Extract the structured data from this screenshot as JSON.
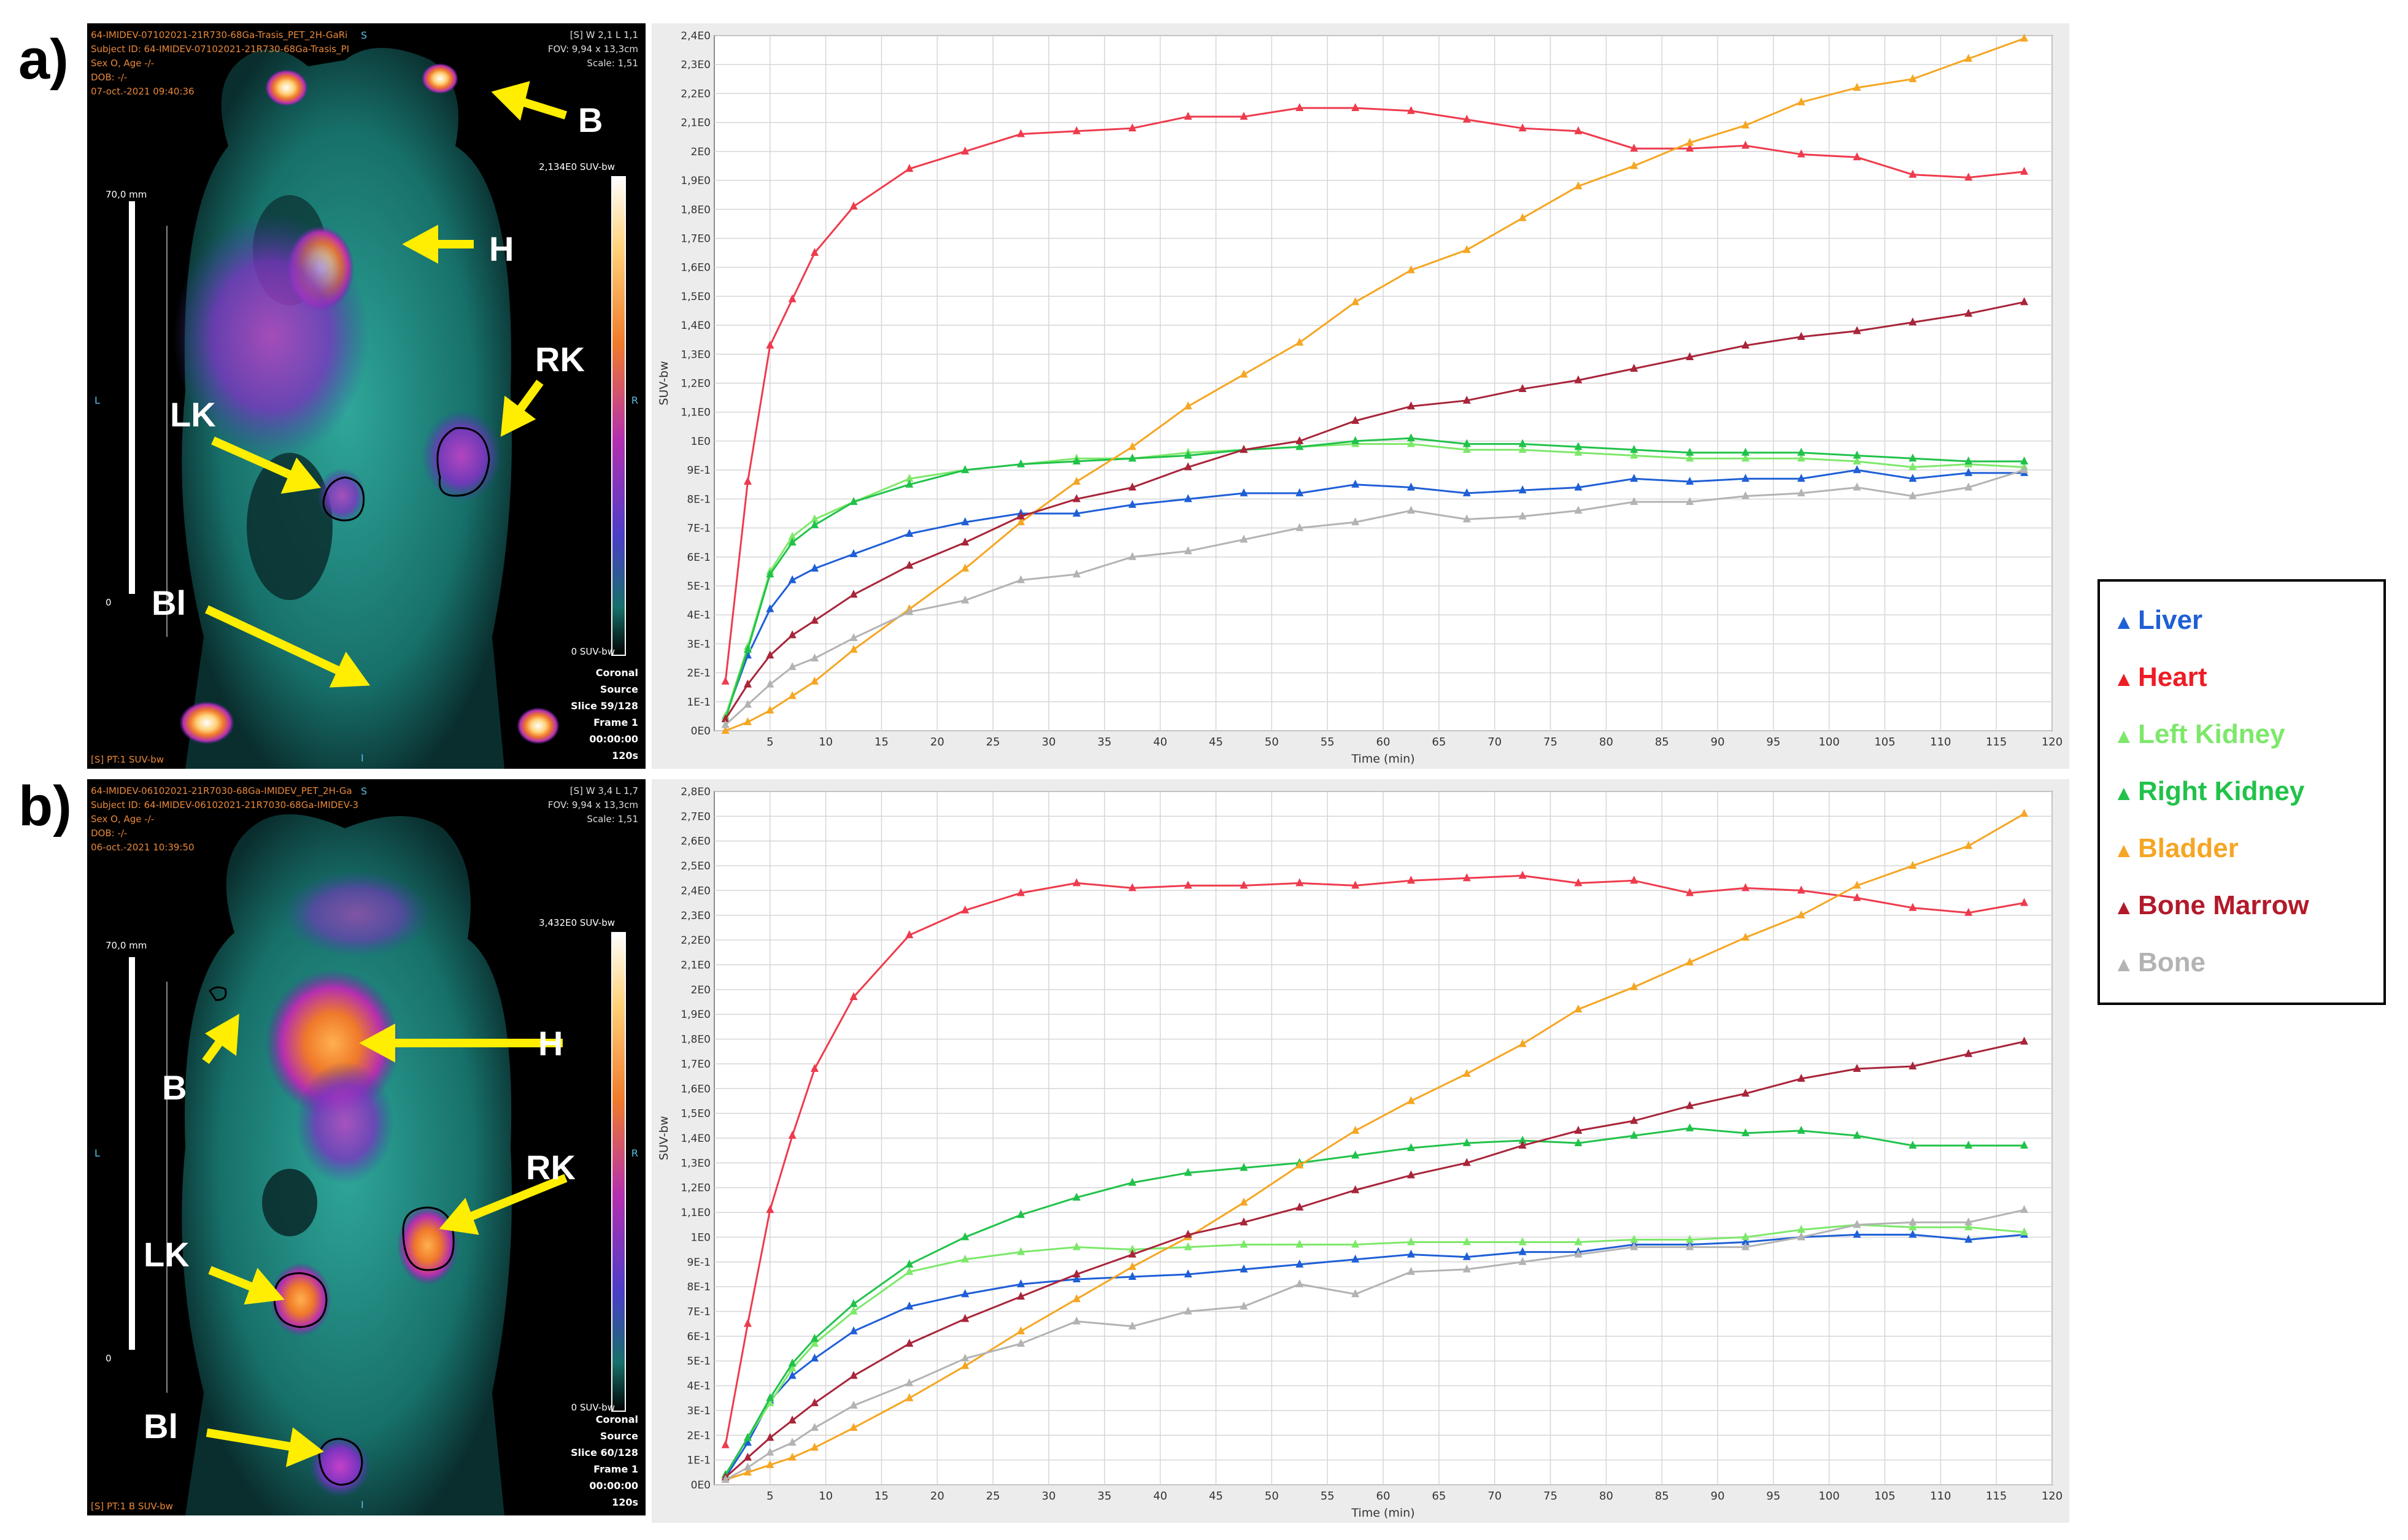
{
  "panels": [
    {
      "letter": "a)",
      "pet": {
        "header_lines": [
          "64-IMIDEV-07102021-21R730-68Ga-Trasis_PET_2H-GaRi",
          "Subject ID: 64-IMIDEV-07102021-21R730-68Ga-Trasis_PI",
          "Sex O, Age -/-",
          "DOB: -/-",
          "07-oct.-2021 09:40:36"
        ],
        "top_right_lines": [
          "[S] W 2,1 L 1,1",
          "FOV: 9,94 x 13,3cm",
          "Scale: 1,51"
        ],
        "colorbar_max": "2,134E0 SUV-bw",
        "colorbar_min": "0 SUV-bw",
        "scale_bar_label": "70,0 mm",
        "scale_zero": "0",
        "orient_left": "L",
        "orient_right": "R",
        "orient_top": "S",
        "orient_bottom": "I",
        "bottom_right_lines": [
          "Coronal",
          "Source",
          "Slice 59/128",
          "Frame 1",
          "00:00:00",
          "120s"
        ],
        "bottom_left": "[S] PT:1 SUV-bw",
        "organ_labels": {
          "b": "B",
          "h": "H",
          "rk": "RK",
          "lk": "LK",
          "bl": "Bl"
        }
      },
      "chart_data": {
        "type": "line",
        "xlabel": "Time (min)",
        "ylabel": "SUV-bw",
        "xlim": [
          0,
          120
        ],
        "ylim": [
          0,
          2.4
        ],
        "x_ticks": [
          5,
          10,
          15,
          20,
          25,
          30,
          35,
          40,
          45,
          50,
          55,
          60,
          65,
          70,
          75,
          80,
          85,
          90,
          95,
          100,
          105,
          110,
          115,
          120
        ],
        "y_ticks": [
          0,
          0.1,
          0.2,
          0.3,
          0.4,
          0.5,
          0.6,
          0.7,
          0.8,
          0.9,
          1.0,
          1.1,
          1.2,
          1.3,
          1.4,
          1.5,
          1.6,
          1.7,
          1.8,
          1.9,
          2.0,
          2.1,
          2.2,
          2.3,
          2.4
        ],
        "y_tick_labels": [
          "0E0",
          "1E-1",
          "2E-1",
          "3E-1",
          "4E-1",
          "5E-1",
          "6E-1",
          "7E-1",
          "8E-1",
          "9E-1",
          "1E0",
          "1,1E0",
          "1,2E0",
          "1,3E0",
          "1,4E0",
          "1,5E0",
          "1,6E0",
          "1,7E0",
          "1,8E0",
          "1,9E0",
          "2E0",
          "2,1E0",
          "2,2E0",
          "2,3E0",
          "2,4E0"
        ],
        "grid": true,
        "x": [
          1,
          3,
          5,
          7,
          9,
          12.5,
          17.5,
          22.5,
          27.5,
          32.5,
          37.5,
          42.5,
          47.5,
          52.5,
          57.5,
          62.5,
          67.5,
          72.5,
          77.5,
          82.5,
          87.5,
          92.5,
          97.5,
          102.5,
          107.5,
          112.5,
          117.5
        ],
        "series": [
          {
            "name": "Liver",
            "color": "#1f5fd6",
            "values": [
              0.05,
              0.26,
              0.42,
              0.52,
              0.56,
              0.61,
              0.68,
              0.72,
              0.75,
              0.75,
              0.78,
              0.8,
              0.82,
              0.82,
              0.85,
              0.84,
              0.82,
              0.83,
              0.84,
              0.87,
              0.86,
              0.87,
              0.87,
              0.9,
              0.87,
              0.89,
              0.89
            ]
          },
          {
            "name": "Heart",
            "color": "#ee3b4d",
            "values": [
              0.17,
              0.86,
              1.33,
              1.49,
              1.65,
              1.81,
              1.94,
              2.0,
              2.06,
              2.07,
              2.08,
              2.12,
              2.12,
              2.15,
              2.15,
              2.14,
              2.11,
              2.08,
              2.07,
              2.01,
              2.01,
              2.02,
              1.99,
              1.98,
              1.92,
              1.91,
              1.93
            ]
          },
          {
            "name": "Left Kidney",
            "color": "#7de86a",
            "values": [
              0.05,
              0.29,
              0.55,
              0.67,
              0.73,
              0.79,
              0.87,
              0.9,
              0.92,
              0.94,
              0.94,
              0.96,
              0.97,
              0.98,
              0.99,
              0.99,
              0.97,
              0.97,
              0.96,
              0.95,
              0.94,
              0.94,
              0.94,
              0.93,
              0.91,
              0.92,
              0.91
            ]
          },
          {
            "name": "Right Kidney",
            "color": "#21c24a",
            "values": [
              0.04,
              0.28,
              0.54,
              0.65,
              0.71,
              0.79,
              0.85,
              0.9,
              0.92,
              0.93,
              0.94,
              0.95,
              0.97,
              0.98,
              1.0,
              1.01,
              0.99,
              0.99,
              0.98,
              0.97,
              0.96,
              0.96,
              0.96,
              0.95,
              0.94,
              0.93,
              0.93
            ]
          },
          {
            "name": "Bladder",
            "color": "#f5a623",
            "values": [
              0.0,
              0.03,
              0.07,
              0.12,
              0.17,
              0.28,
              0.42,
              0.56,
              0.72,
              0.86,
              0.98,
              1.12,
              1.23,
              1.34,
              1.48,
              1.59,
              1.66,
              1.77,
              1.88,
              1.95,
              2.03,
              2.09,
              2.17,
              2.22,
              2.25,
              2.32,
              2.39
            ]
          },
          {
            "name": "Bone Marrow",
            "color": "#a8253a",
            "values": [
              0.04,
              0.16,
              0.26,
              0.33,
              0.38,
              0.47,
              0.57,
              0.65,
              0.74,
              0.8,
              0.84,
              0.91,
              0.97,
              1.0,
              1.07,
              1.12,
              1.14,
              1.18,
              1.21,
              1.25,
              1.29,
              1.33,
              1.36,
              1.38,
              1.41,
              1.44,
              1.48
            ]
          },
          {
            "name": "Bone",
            "color": "#b3b3b3",
            "values": [
              0.02,
              0.09,
              0.16,
              0.22,
              0.25,
              0.32,
              0.41,
              0.45,
              0.52,
              0.54,
              0.6,
              0.62,
              0.66,
              0.7,
              0.72,
              0.76,
              0.73,
              0.74,
              0.76,
              0.79,
              0.79,
              0.81,
              0.82,
              0.84,
              0.81,
              0.84,
              0.9
            ]
          }
        ]
      }
    },
    {
      "letter": "b)",
      "pet": {
        "header_lines": [
          "64-IMIDEV-06102021-21R7030-68Ga-IMIDEV_PET_2H-Ga",
          "Subject ID: 64-IMIDEV-06102021-21R7030-68Ga-IMIDEV-3",
          "Sex O, Age -/-",
          "DOB: -/-",
          "06-oct.-2021 10:39:50"
        ],
        "top_right_lines": [
          "[S] W 3,4 L 1,7",
          "FOV: 9,94 x 13,3cm",
          "Scale: 1,51"
        ],
        "colorbar_max": "3,432E0 SUV-bw",
        "colorbar_min": "0 SUV-bw",
        "scale_bar_label": "70,0 mm",
        "scale_zero": "0",
        "orient_left": "L",
        "orient_right": "R",
        "orient_top": "S",
        "orient_bottom": "I",
        "bottom_right_lines": [
          "Coronal",
          "Source",
          "Slice 60/128",
          "Frame 1",
          "00:00:00",
          "120s"
        ],
        "bottom_left": "[S] PT:1 B SUV-bw",
        "organ_labels": {
          "b": "B",
          "h": "H",
          "rk": "RK",
          "lk": "LK",
          "bl": "Bl"
        }
      },
      "chart_data": {
        "type": "line",
        "xlabel": "Time (min)",
        "ylabel": "SUV-bw",
        "xlim": [
          0,
          120
        ],
        "ylim": [
          0,
          2.8
        ],
        "x_ticks": [
          5,
          10,
          15,
          20,
          25,
          30,
          35,
          40,
          45,
          50,
          55,
          60,
          65,
          70,
          75,
          80,
          85,
          90,
          95,
          100,
          105,
          110,
          115,
          120
        ],
        "y_ticks": [
          0,
          0.1,
          0.2,
          0.3,
          0.4,
          0.5,
          0.6,
          0.7,
          0.8,
          0.9,
          1.0,
          1.1,
          1.2,
          1.3,
          1.4,
          1.5,
          1.6,
          1.7,
          1.8,
          1.9,
          2.0,
          2.1,
          2.2,
          2.3,
          2.4,
          2.5,
          2.6,
          2.7,
          2.8
        ],
        "y_tick_labels": [
          "0E0",
          "1E-1",
          "2E-1",
          "3E-1",
          "4E-1",
          "5E-1",
          "6E-1",
          "7E-1",
          "8E-1",
          "9E-1",
          "1E0",
          "1,1E0",
          "1,2E0",
          "1,3E0",
          "1,4E0",
          "1,5E0",
          "1,6E0",
          "1,7E0",
          "1,8E0",
          "1,9E0",
          "2E0",
          "2,1E0",
          "2,2E0",
          "2,3E0",
          "2,4E0",
          "2,5E0",
          "2,6E0",
          "2,7E0",
          "2,8E0"
        ],
        "grid": true,
        "x": [
          1,
          3,
          5,
          7,
          9,
          12.5,
          17.5,
          22.5,
          27.5,
          32.5,
          37.5,
          42.5,
          47.5,
          52.5,
          57.5,
          62.5,
          67.5,
          72.5,
          77.5,
          82.5,
          87.5,
          92.5,
          97.5,
          102.5,
          107.5,
          112.5,
          117.5
        ],
        "series": [
          {
            "name": "Liver",
            "color": "#1f5fd6",
            "values": [
              0.03,
              0.17,
              0.34,
              0.44,
              0.51,
              0.62,
              0.72,
              0.77,
              0.81,
              0.83,
              0.84,
              0.85,
              0.87,
              0.89,
              0.91,
              0.93,
              0.92,
              0.94,
              0.94,
              0.97,
              0.97,
              0.98,
              1.0,
              1.01,
              1.01,
              0.99,
              1.01
            ]
          },
          {
            "name": "Heart",
            "color": "#ee3b4d",
            "values": [
              0.16,
              0.65,
              1.11,
              1.41,
              1.68,
              1.97,
              2.22,
              2.32,
              2.39,
              2.43,
              2.41,
              2.42,
              2.42,
              2.43,
              2.42,
              2.44,
              2.45,
              2.46,
              2.43,
              2.44,
              2.39,
              2.41,
              2.4,
              2.37,
              2.33,
              2.31,
              2.35
            ]
          },
          {
            "name": "Left Kidney",
            "color": "#7de86a",
            "values": [
              0.04,
              0.19,
              0.33,
              0.47,
              0.57,
              0.7,
              0.86,
              0.91,
              0.94,
              0.96,
              0.95,
              0.96,
              0.97,
              0.97,
              0.97,
              0.98,
              0.98,
              0.98,
              0.98,
              0.99,
              0.99,
              1.0,
              1.03,
              1.05,
              1.04,
              1.04,
              1.02
            ]
          },
          {
            "name": "Right Kidney",
            "color": "#21c24a",
            "values": [
              0.04,
              0.19,
              0.35,
              0.49,
              0.59,
              0.73,
              0.89,
              1.0,
              1.09,
              1.16,
              1.22,
              1.26,
              1.28,
              1.3,
              1.33,
              1.36,
              1.38,
              1.39,
              1.38,
              1.41,
              1.44,
              1.42,
              1.43,
              1.41,
              1.37,
              1.37,
              1.37
            ]
          },
          {
            "name": "Bladder",
            "color": "#f5a623",
            "values": [
              0.02,
              0.05,
              0.08,
              0.11,
              0.15,
              0.23,
              0.35,
              0.48,
              0.62,
              0.75,
              0.88,
              1.0,
              1.14,
              1.29,
              1.43,
              1.55,
              1.66,
              1.78,
              1.92,
              2.01,
              2.11,
              2.21,
              2.3,
              2.42,
              2.5,
              2.58,
              2.71
            ]
          },
          {
            "name": "Bone Marrow",
            "color": "#a8253a",
            "values": [
              0.03,
              0.11,
              0.19,
              0.26,
              0.33,
              0.44,
              0.57,
              0.67,
              0.76,
              0.85,
              0.93,
              1.01,
              1.06,
              1.12,
              1.19,
              1.25,
              1.3,
              1.37,
              1.43,
              1.47,
              1.53,
              1.58,
              1.64,
              1.68,
              1.69,
              1.74,
              1.79
            ]
          },
          {
            "name": "Bone",
            "color": "#b3b3b3",
            "values": [
              0.02,
              0.07,
              0.13,
              0.17,
              0.23,
              0.32,
              0.41,
              0.51,
              0.57,
              0.66,
              0.64,
              0.7,
              0.72,
              0.81,
              0.77,
              0.86,
              0.87,
              0.9,
              0.93,
              0.96,
              0.96,
              0.96,
              1.0,
              1.05,
              1.06,
              1.06,
              1.11
            ]
          }
        ]
      }
    }
  ],
  "legend": [
    {
      "label": "Liver",
      "color": "#1f5fd6"
    },
    {
      "label": "Heart",
      "color": "#ee1c24"
    },
    {
      "label": "Left Kidney",
      "color": "#7de86a"
    },
    {
      "label": "Right Kidney",
      "color": "#21c24a"
    },
    {
      "label": "Bladder",
      "color": "#f5a623"
    },
    {
      "label": "Bone Marrow",
      "color": "#b21a2a"
    },
    {
      "label": "Bone",
      "color": "#b3b3b3"
    }
  ],
  "legend_marker": "▲"
}
